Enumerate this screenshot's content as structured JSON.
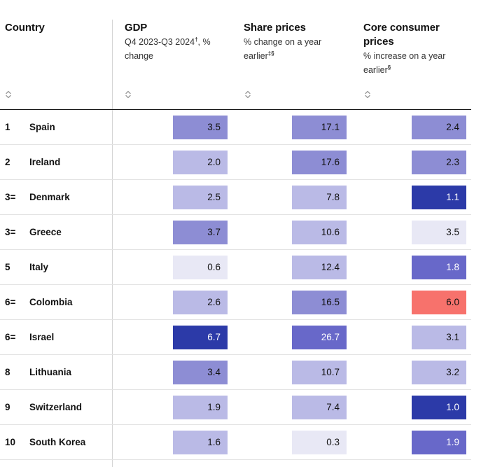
{
  "columns": {
    "country": {
      "title": "Country"
    },
    "gdp": {
      "title": "GDP",
      "subtitle": "Q4 2023-Q3 2024",
      "subtitle_sup": "†",
      "subtitle_tail": ", % change"
    },
    "share": {
      "title": "Share prices",
      "subtitle": "% change on a year earlier",
      "subtitle_sup": "‡§"
    },
    "core": {
      "title_line1": "Core consumer",
      "title_line2": "prices",
      "subtitle": "% increase on a year earlier",
      "subtitle_sup": "§"
    }
  },
  "sort_icon": "sort-up-down-icon",
  "colors": {
    "shade1": "#e8e8f5",
    "shade2": "#babae6",
    "shade3": "#8d8dd4",
    "shade4": "#6868c9",
    "shade5": "#2c3aa8",
    "negative": "#f7726c"
  },
  "rows": [
    {
      "rank": "1",
      "country": "Spain",
      "gdp": "3.5",
      "share": "17.1",
      "core": "2.4"
    },
    {
      "rank": "2",
      "country": "Ireland",
      "gdp": "2.0",
      "share": "17.6",
      "core": "2.3"
    },
    {
      "rank": "3=",
      "country": "Denmark",
      "gdp": "2.5",
      "share": "7.8",
      "core": "1.1"
    },
    {
      "rank": "3=",
      "country": "Greece",
      "gdp": "3.7",
      "share": "10.6",
      "core": "3.5"
    },
    {
      "rank": "5",
      "country": "Italy",
      "gdp": "0.6",
      "share": "12.4",
      "core": "1.8"
    },
    {
      "rank": "6=",
      "country": "Colombia",
      "gdp": "2.6",
      "share": "16.5",
      "core": "6.0"
    },
    {
      "rank": "6=",
      "country": "Israel",
      "gdp": "6.7",
      "share": "26.7",
      "core": "3.1"
    },
    {
      "rank": "8",
      "country": "Lithuania",
      "gdp": "3.4",
      "share": "10.7",
      "core": "3.2"
    },
    {
      "rank": "9",
      "country": "Switzerland",
      "gdp": "1.9",
      "share": "7.4",
      "core": "1.0"
    },
    {
      "rank": "10",
      "country": "South Korea",
      "gdp": "1.6",
      "share": "0.3",
      "core": "1.9"
    }
  ]
}
